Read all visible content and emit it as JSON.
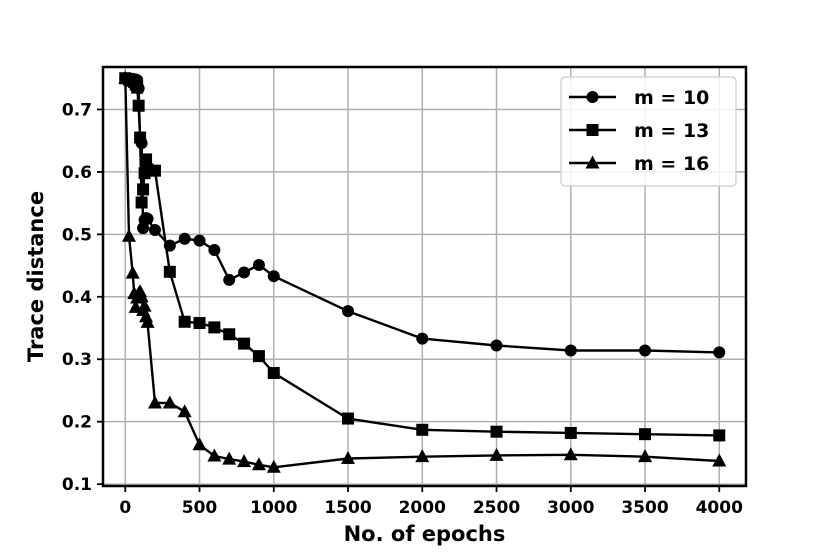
{
  "chart_data": {
    "type": "line",
    "xlabel": "No. of epochs",
    "ylabel": "Trace distance",
    "xlim": [
      -150,
      4180
    ],
    "ylim": [
      0.097,
      0.768
    ],
    "xticks": [
      0,
      500,
      1000,
      1500,
      2000,
      2500,
      3000,
      3500,
      4000
    ],
    "yticks": [
      0.1,
      0.2,
      0.3,
      0.4,
      0.5,
      0.6,
      0.7
    ],
    "xtick_labels": [
      "0",
      "500",
      "1000",
      "1500",
      "2000",
      "2500",
      "3000",
      "3500",
      "4000"
    ],
    "ytick_labels": [
      "0.1",
      "0.2",
      "0.3",
      "0.4",
      "0.5",
      "0.6",
      "0.7"
    ],
    "grid": true,
    "legend_position": "top-right",
    "series": [
      {
        "name": "m = 10",
        "marker": "circle",
        "color": "#000000",
        "x": [
          0,
          25,
          50,
          60,
          70,
          80,
          90,
          100,
          110,
          120,
          130,
          140,
          150,
          200,
          300,
          400,
          500,
          600,
          700,
          800,
          900,
          1000,
          1500,
          2000,
          2500,
          3000,
          3500,
          4000
        ],
        "y": [
          0.75,
          0.749,
          0.749,
          0.748,
          0.748,
          0.747,
          0.734,
          0.652,
          0.646,
          0.51,
          0.523,
          0.526,
          0.525,
          0.507,
          0.482,
          0.493,
          0.49,
          0.475,
          0.427,
          0.439,
          0.451,
          0.433,
          0.377,
          0.333,
          0.322,
          0.314,
          0.314,
          0.311
        ]
      },
      {
        "name": "m = 13",
        "marker": "square",
        "color": "#000000",
        "x": [
          0,
          25,
          50,
          60,
          70,
          80,
          90,
          100,
          110,
          120,
          130,
          140,
          150,
          200,
          300,
          400,
          500,
          600,
          700,
          800,
          900,
          1000,
          1500,
          2000,
          2500,
          3000,
          3500,
          4000
        ],
        "y": [
          0.75,
          0.748,
          0.746,
          0.744,
          0.74,
          0.735,
          0.706,
          0.655,
          0.551,
          0.572,
          0.598,
          0.62,
          0.604,
          0.602,
          0.44,
          0.36,
          0.358,
          0.351,
          0.34,
          0.325,
          0.305,
          0.278,
          0.205,
          0.187,
          0.184,
          0.182,
          0.18,
          0.178
        ]
      },
      {
        "name": "m = 16",
        "marker": "triangle",
        "color": "#000000",
        "x": [
          0,
          25,
          50,
          60,
          70,
          80,
          90,
          100,
          110,
          120,
          130,
          140,
          150,
          200,
          300,
          400,
          500,
          600,
          700,
          800,
          900,
          1000,
          1500,
          2000,
          2500,
          3000,
          3500,
          4000
        ],
        "y": [
          0.75,
          0.497,
          0.438,
          0.405,
          0.383,
          0.398,
          0.405,
          0.408,
          0.4,
          0.378,
          0.385,
          0.368,
          0.359,
          0.23,
          0.23,
          0.216,
          0.163,
          0.145,
          0.14,
          0.136,
          0.131,
          0.127,
          0.141,
          0.144,
          0.146,
          0.147,
          0.144,
          0.137
        ]
      }
    ]
  }
}
